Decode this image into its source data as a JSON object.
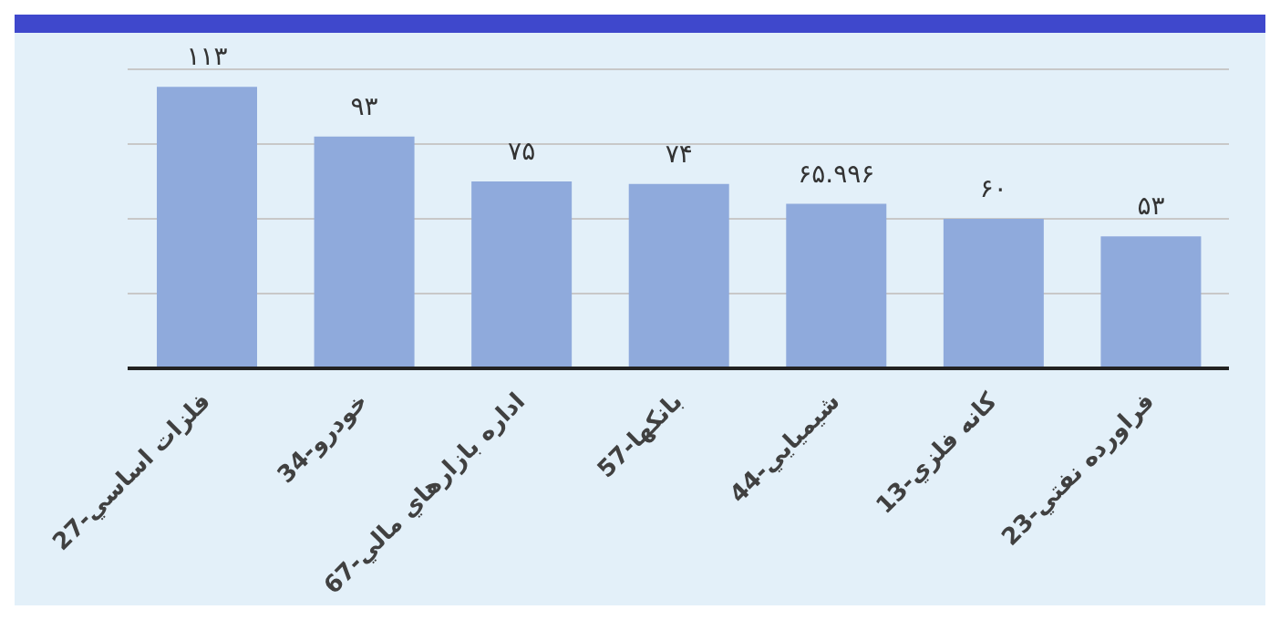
{
  "chart_data": {
    "type": "bar",
    "categories": [
      "27-فلزات اساسي",
      "34-خودرو",
      "67-اداره بازارهاي مالي",
      "57-بانكها",
      "44-شيميايي",
      "13-كانه فلزي",
      "23-فراورده نفتي"
    ],
    "values": [
      113,
      93,
      75,
      74,
      65.996,
      60,
      53
    ],
    "value_labels": [
      "۱۱۳",
      "۹۳",
      "۷۵",
      "۷۴",
      "۶۵.۹۹۶",
      "۶۰",
      "۵۳"
    ],
    "color": "#8faadc",
    "grid": "y",
    "tick_labels": "x",
    "legend": false
  }
}
